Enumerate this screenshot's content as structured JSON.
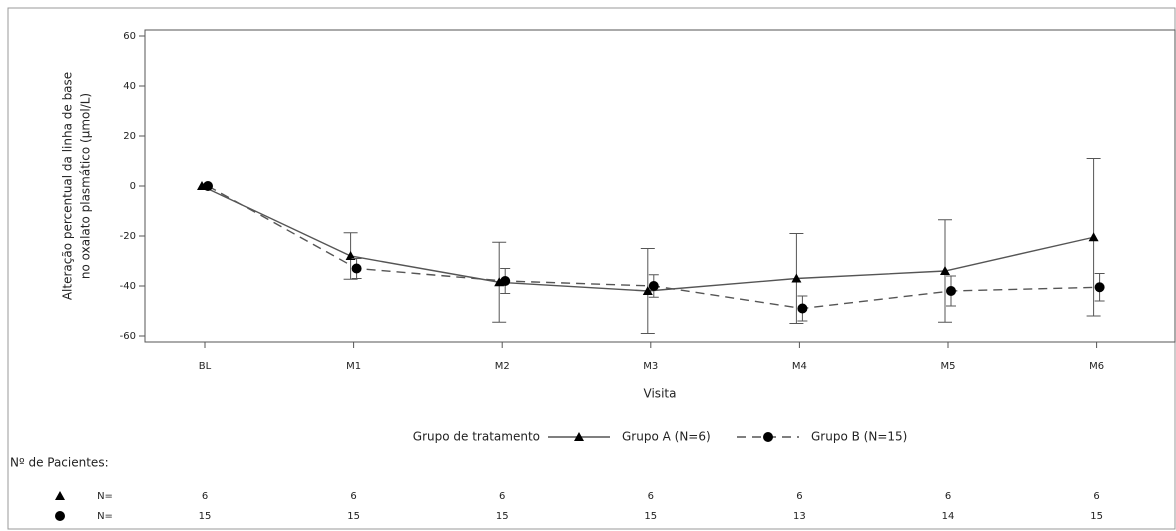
{
  "chart_data": {
    "type": "line",
    "y_label": [
      "Alteração percentual da linha de base",
      "no oxalato plasmático (µmol/L)"
    ],
    "x_label": "Visita",
    "categories": [
      "BL",
      "M1",
      "M2",
      "M3",
      "M4",
      "M5",
      "M6"
    ],
    "ylim": [
      -60,
      60
    ],
    "yticks": [
      -60,
      -40,
      -20,
      0,
      20,
      40,
      60
    ],
    "legend_title": "Grupo de tratamento",
    "series": [
      {
        "name": "Grupo A (N=6)",
        "color": "#555555",
        "marker": "triangle",
        "dashed": false,
        "values": [
          0,
          -28,
          -38.5,
          -42,
          -37,
          -34,
          -20.5
        ],
        "errors": [
          0,
          9.3,
          16,
          17,
          18,
          20.5,
          31.5
        ]
      },
      {
        "name": "Grupo B (N=15)",
        "color": "#555555",
        "marker": "circle",
        "dashed": true,
        "values": [
          0,
          -33,
          -38,
          -40,
          -49,
          -42,
          -40.5
        ],
        "errors": [
          0,
          4,
          5,
          4.5,
          5,
          6,
          5.5
        ]
      }
    ],
    "patients": {
      "title": "Nº de Pacientes:",
      "rows": [
        {
          "label": "N=",
          "counts": [
            6,
            6,
            6,
            6,
            6,
            6,
            6
          ]
        },
        {
          "label": "N=",
          "counts": [
            15,
            15,
            15,
            15,
            13,
            14,
            15
          ]
        }
      ]
    }
  }
}
